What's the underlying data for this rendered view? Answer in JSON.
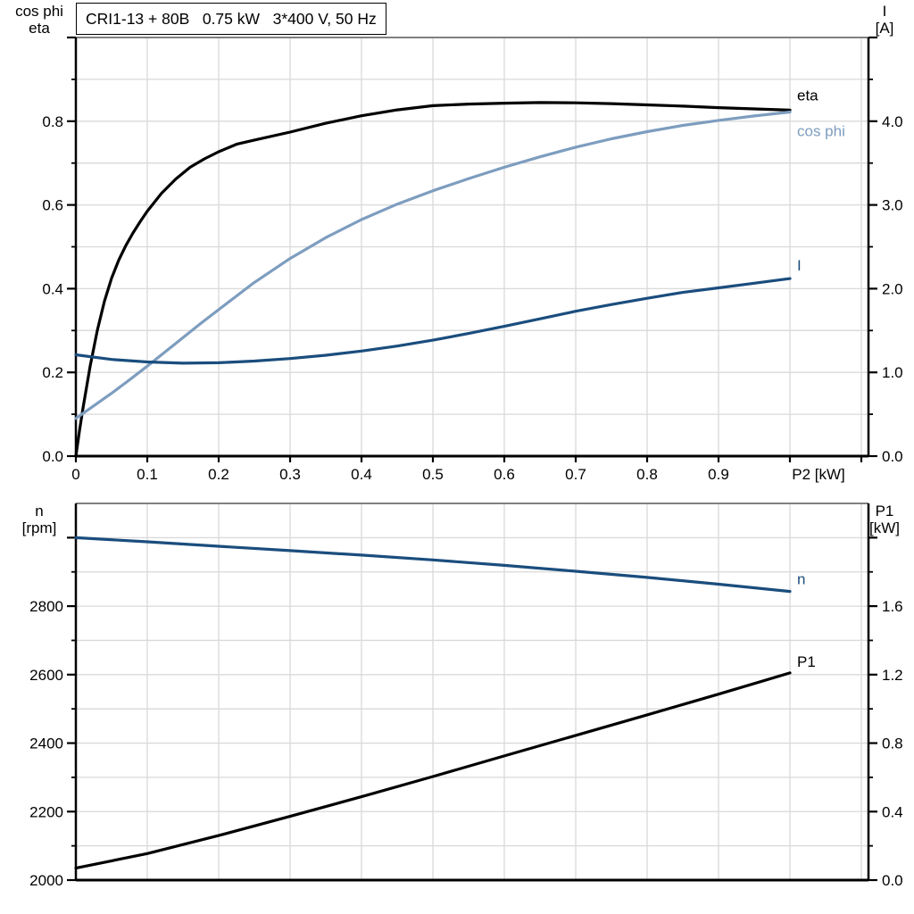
{
  "title": "CRI1-13 + 80B   0.75 kW   3*400 V, 50 Hz",
  "colors": {
    "black_curve": "#000000",
    "steel_blue_curve": "#7d9dbf",
    "dark_blue_curve": "#1a4d7d",
    "grid": "#d9d9d9",
    "top_border": "#808080",
    "axis": "#000000"
  },
  "chart_data": [
    {
      "type": "line",
      "id": "top",
      "left_axis_title": [
        "cos phi",
        "eta"
      ],
      "right_axis_title": [
        "I",
        "[A]"
      ],
      "x": {
        "min": 0,
        "max": 1.11,
        "grid_step": 0.1,
        "unit_label": "P2 [kW]",
        "unit_label_at": 1.04,
        "ticks": [
          {
            "v": 0.0,
            "label": "0"
          },
          {
            "v": 0.1,
            "label": "0.1"
          },
          {
            "v": 0.2,
            "label": "0.2"
          },
          {
            "v": 0.3,
            "label": "0.3"
          },
          {
            "v": 0.4,
            "label": "0.4"
          },
          {
            "v": 0.5,
            "label": "0.5"
          },
          {
            "v": 0.6,
            "label": "0.6"
          },
          {
            "v": 0.7,
            "label": "0.7"
          },
          {
            "v": 0.8,
            "label": "0.8"
          },
          {
            "v": 0.9,
            "label": "0.9"
          },
          {
            "v": 1.0,
            "label": ""
          },
          {
            "v": 1.1,
            "label": ""
          }
        ]
      },
      "left": {
        "min": 0,
        "max": 1.0,
        "grid_step": 0.1,
        "majors": [
          {
            "v": 0.0,
            "label": "0.0"
          },
          {
            "v": 0.2,
            "label": "0.2"
          },
          {
            "v": 0.4,
            "label": "0.4"
          },
          {
            "v": 0.6,
            "label": "0.6"
          },
          {
            "v": 0.8,
            "label": "0.8"
          },
          {
            "v": 1.0,
            "label": ""
          }
        ],
        "minors": [
          0.1,
          0.3,
          0.5,
          0.7,
          0.9
        ]
      },
      "right": {
        "min": 0,
        "max": 5.0,
        "majors": [
          {
            "v": 0.0,
            "label": "0.0"
          },
          {
            "v": 1.0,
            "label": "1.0"
          },
          {
            "v": 2.0,
            "label": "2.0"
          },
          {
            "v": 3.0,
            "label": "3.0"
          },
          {
            "v": 4.0,
            "label": "4.0"
          },
          {
            "v": 5.0,
            "label": ""
          }
        ],
        "minors": [
          0.5,
          1.5,
          2.5,
          3.5,
          4.5
        ]
      },
      "series": [
        {
          "name": "eta",
          "axis": "left",
          "color": "#000000",
          "width": 3.2,
          "label_dx": 8,
          "label_dy": -11,
          "points": [
            [
              0,
              0
            ],
            [
              0.005,
              0.06
            ],
            [
              0.01,
              0.115
            ],
            [
              0.02,
              0.215
            ],
            [
              0.03,
              0.3
            ],
            [
              0.04,
              0.37
            ],
            [
              0.05,
              0.425
            ],
            [
              0.06,
              0.468
            ],
            [
              0.07,
              0.503
            ],
            [
              0.08,
              0.533
            ],
            [
              0.09,
              0.56
            ],
            [
              0.1,
              0.585
            ],
            [
              0.12,
              0.628
            ],
            [
              0.14,
              0.662
            ],
            [
              0.16,
              0.69
            ],
            [
              0.18,
              0.71
            ],
            [
              0.2,
              0.727
            ],
            [
              0.225,
              0.745
            ],
            [
              0.25,
              0.755
            ],
            [
              0.3,
              0.774
            ],
            [
              0.35,
              0.795
            ],
            [
              0.4,
              0.813
            ],
            [
              0.45,
              0.827
            ],
            [
              0.5,
              0.837
            ],
            [
              0.55,
              0.841
            ],
            [
              0.6,
              0.843
            ],
            [
              0.65,
              0.8445
            ],
            [
              0.7,
              0.844
            ],
            [
              0.75,
              0.842
            ],
            [
              0.8,
              0.839
            ],
            [
              0.85,
              0.836
            ],
            [
              0.9,
              0.8325
            ],
            [
              0.95,
              0.8295
            ],
            [
              1.0,
              0.8265
            ]
          ]
        },
        {
          "name": "cos phi",
          "axis": "left",
          "color": "#7d9dbf",
          "width": 3.2,
          "label_dx": 8,
          "label_dy": 27,
          "points": [
            [
              0,
              0.09
            ],
            [
              0.025,
              0.12
            ],
            [
              0.05,
              0.15
            ],
            [
              0.075,
              0.182
            ],
            [
              0.1,
              0.215
            ],
            [
              0.125,
              0.249
            ],
            [
              0.15,
              0.283
            ],
            [
              0.175,
              0.317
            ],
            [
              0.2,
              0.35
            ],
            [
              0.25,
              0.415
            ],
            [
              0.3,
              0.472
            ],
            [
              0.35,
              0.522
            ],
            [
              0.4,
              0.565
            ],
            [
              0.45,
              0.602
            ],
            [
              0.5,
              0.634
            ],
            [
              0.55,
              0.663
            ],
            [
              0.6,
              0.69
            ],
            [
              0.65,
              0.715
            ],
            [
              0.7,
              0.738
            ],
            [
              0.75,
              0.758
            ],
            [
              0.8,
              0.775
            ],
            [
              0.85,
              0.79
            ],
            [
              0.9,
              0.802
            ],
            [
              0.95,
              0.8125
            ],
            [
              1.0,
              0.822
            ]
          ]
        },
        {
          "name": "I",
          "axis": "right",
          "color": "#1a4d7d",
          "width": 3.2,
          "label_dx": 8,
          "label_dy": -9,
          "points": [
            [
              0,
              1.21
            ],
            [
              0.05,
              1.155
            ],
            [
              0.1,
              1.125
            ],
            [
              0.15,
              1.11
            ],
            [
              0.2,
              1.115
            ],
            [
              0.25,
              1.135
            ],
            [
              0.3,
              1.165
            ],
            [
              0.35,
              1.205
            ],
            [
              0.4,
              1.255
            ],
            [
              0.45,
              1.315
            ],
            [
              0.5,
              1.385
            ],
            [
              0.55,
              1.465
            ],
            [
              0.6,
              1.55
            ],
            [
              0.65,
              1.64
            ],
            [
              0.7,
              1.73
            ],
            [
              0.75,
              1.81
            ],
            [
              0.8,
              1.885
            ],
            [
              0.85,
              1.955
            ],
            [
              0.9,
              2.01
            ],
            [
              0.95,
              2.065
            ],
            [
              1.0,
              2.12
            ]
          ]
        }
      ]
    },
    {
      "type": "line",
      "id": "bottom",
      "left_axis_title": [
        "n",
        "[rpm]"
      ],
      "right_axis_title": [
        "P1",
        "[kW]"
      ],
      "x": {
        "min": 0,
        "max": 1.11,
        "grid_step": 0.1,
        "ticks": []
      },
      "left": {
        "min": 2000,
        "max": 3100,
        "grid_step": 100,
        "majors": [
          {
            "v": 2000,
            "label": "2000"
          },
          {
            "v": 2200,
            "label": "2200"
          },
          {
            "v": 2400,
            "label": "2400"
          },
          {
            "v": 2600,
            "label": "2600"
          },
          {
            "v": 2800,
            "label": "2800"
          },
          {
            "v": 3000,
            "label": ""
          }
        ],
        "minors": [
          2100,
          2300,
          2500,
          2700,
          2900
        ]
      },
      "right": {
        "min": 0,
        "max": 2.2,
        "majors": [
          {
            "v": 0.0,
            "label": "0.0"
          },
          {
            "v": 0.4,
            "label": "0.4"
          },
          {
            "v": 0.8,
            "label": "0.8"
          },
          {
            "v": 1.2,
            "label": "1.2"
          },
          {
            "v": 1.6,
            "label": "1.6"
          },
          {
            "v": 2.0,
            "label": ""
          }
        ],
        "minors": [
          0.2,
          0.6,
          1.0,
          1.4,
          1.8
        ]
      },
      "series": [
        {
          "name": "n",
          "axis": "left",
          "color": "#1a4d7d",
          "width": 3.2,
          "label_dx": 8,
          "label_dy": -8,
          "points": [
            [
              0,
              3000
            ],
            [
              0.1,
              2988
            ],
            [
              0.2,
              2975
            ],
            [
              0.3,
              2962
            ],
            [
              0.4,
              2949
            ],
            [
              0.5,
              2935
            ],
            [
              0.6,
              2919
            ],
            [
              0.7,
              2902
            ],
            [
              0.8,
              2884
            ],
            [
              0.9,
              2864
            ],
            [
              1.0,
              2843
            ]
          ]
        },
        {
          "name": "P1",
          "axis": "right",
          "color": "#000000",
          "width": 3.2,
          "label_dx": 8,
          "label_dy": -7,
          "points": [
            [
              0,
              0.07
            ],
            [
              0.1,
              0.155
            ],
            [
              0.2,
              0.26
            ],
            [
              0.3,
              0.372
            ],
            [
              0.4,
              0.487
            ],
            [
              0.5,
              0.605
            ],
            [
              0.6,
              0.725
            ],
            [
              0.7,
              0.845
            ],
            [
              0.8,
              0.965
            ],
            [
              0.9,
              1.086
            ],
            [
              1.0,
              1.21
            ]
          ]
        }
      ]
    }
  ]
}
